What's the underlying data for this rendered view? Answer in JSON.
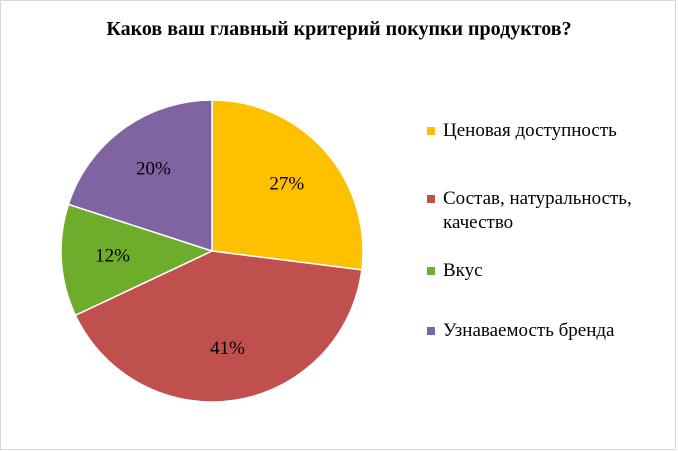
{
  "chart_data": {
    "type": "pie",
    "title": "Каков ваш главный критерий покупки продуктов?",
    "slices": [
      {
        "name": "Ценовая доступность",
        "value": 27,
        "label": "27%",
        "color": "#FFC000"
      },
      {
        "name": "Состав, натуральность, качество",
        "value": 41,
        "label": "41%",
        "color": "#C0504D"
      },
      {
        "name": "Вкус",
        "value": 12,
        "label": "12%",
        "color": "#6DAD2B"
      },
      {
        "name": "Узнаваемость бренда",
        "value": 20,
        "label": "20%",
        "color": "#8064A2"
      }
    ],
    "start_angle": "12 o'clock",
    "direction": "clockwise",
    "legend_placement": "right"
  }
}
